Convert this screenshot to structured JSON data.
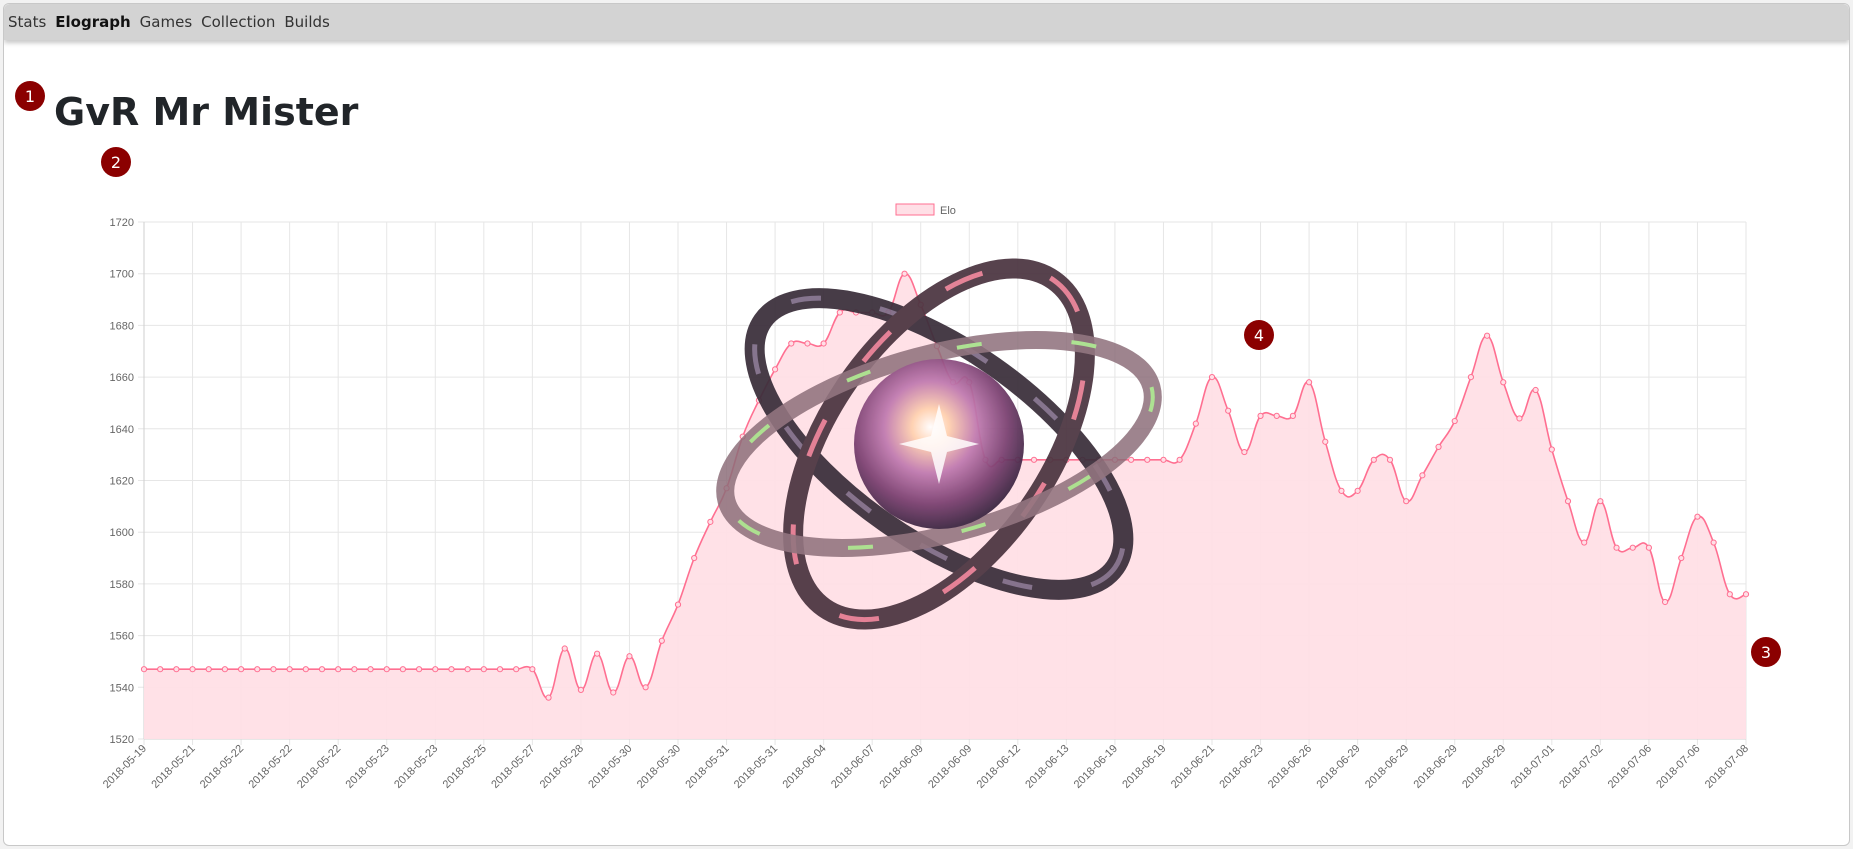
{
  "nav": {
    "items": [
      {
        "label": "Stats",
        "active": false
      },
      {
        "label": "Elograph",
        "active": true
      },
      {
        "label": "Games",
        "active": false
      },
      {
        "label": "Collection",
        "active": false
      },
      {
        "label": "Builds",
        "active": false
      }
    ]
  },
  "page": {
    "title": "GvR Mr Mister"
  },
  "markers": [
    "1",
    "2",
    "3",
    "4"
  ],
  "colors": {
    "line": "#ff6f91",
    "fill": "#ffdfe6",
    "marker": "#8b0000"
  },
  "overlay_icon": "atom-orbit-logo-icon",
  "chart_data": {
    "type": "line",
    "legend": [
      "Elo"
    ],
    "legend_position": "top-center",
    "grid": true,
    "fill": true,
    "ylim": [
      1520,
      1720
    ],
    "yticks": [
      1520,
      1540,
      1560,
      1580,
      1600,
      1620,
      1640,
      1660,
      1680,
      1700,
      1720
    ],
    "xtick_labels": [
      "2018-05-19",
      "2018-05-21",
      "2018-05-22",
      "2018-05-22",
      "2018-05-22",
      "2018-05-23",
      "2018-05-23",
      "2018-05-25",
      "2018-05-27",
      "2018-05-28",
      "2018-05-30",
      "2018-05-30",
      "2018-05-31",
      "2018-05-31",
      "2018-06-04",
      "2018-06-07",
      "2018-06-09",
      "2018-06-09",
      "2018-06-12",
      "2018-06-13",
      "2018-06-19",
      "2018-06-19",
      "2018-06-21",
      "2018-06-23",
      "2018-06-26",
      "2018-06-29",
      "2018-06-29",
      "2018-06-29",
      "2018-06-29",
      "2018-07-01",
      "2018-07-02",
      "2018-07-06",
      "2018-07-06",
      "2018-07-08"
    ],
    "series": [
      {
        "name": "Elo",
        "values": [
          1547,
          1547,
          1547,
          1547,
          1547,
          1547,
          1547,
          1547,
          1547,
          1547,
          1547,
          1547,
          1547,
          1547,
          1547,
          1547,
          1547,
          1547,
          1547,
          1547,
          1547,
          1547,
          1547,
          1547,
          1547,
          1536,
          1555,
          1539,
          1553,
          1538,
          1552,
          1540,
          1558,
          1572,
          1590,
          1604,
          1617,
          1637,
          1651,
          1663,
          1673,
          1673,
          1673,
          1685,
          1685,
          1685,
          1685,
          1700,
          1688,
          1672,
          1658,
          1658,
          1628,
          1628,
          1628,
          1628,
          1628,
          1628,
          1628,
          1628,
          1628,
          1628,
          1628,
          1628,
          1628,
          1642,
          1660,
          1647,
          1631,
          1645,
          1645,
          1645,
          1658,
          1635,
          1616,
          1616,
          1628,
          1628,
          1612,
          1622,
          1633,
          1643,
          1660,
          1676,
          1658,
          1644,
          1655,
          1632,
          1612,
          1596,
          1612,
          1594,
          1594,
          1594,
          1573,
          1590,
          1606,
          1596,
          1576,
          1576
        ]
      }
    ]
  }
}
